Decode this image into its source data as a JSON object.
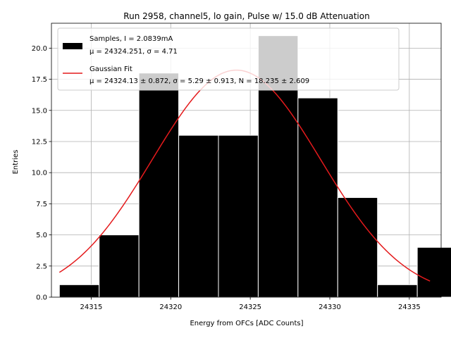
{
  "chart_data": {
    "type": "bar",
    "title": "Run 2958, channel5, lo gain, Pulse w/ 15.0 dB Attenuation",
    "xlabel": "Energy from OFCs [ADC Counts]",
    "ylabel": "Entries",
    "xlim": [
      24312.5,
      24337.0
    ],
    "ylim": [
      0,
      22.0
    ],
    "grid": true,
    "legend_placement": "top-left",
    "x_ticks": [
      24315,
      24320,
      24325,
      24330,
      24335
    ],
    "x_tick_labels": [
      "24315",
      "24320",
      "24325",
      "24330",
      "24335"
    ],
    "y_ticks": [
      0,
      2.5,
      5,
      7.5,
      10,
      12.5,
      15,
      17.5,
      20
    ],
    "y_tick_labels": [
      "0.0",
      "2.5",
      "5.0",
      "7.5",
      "10.0",
      "12.5",
      "15.0",
      "17.5",
      "20.0"
    ],
    "histogram": {
      "name": "Samples, I = 2.0839mA",
      "stats": "μ = 24324.251, σ = 4.71",
      "color": "#000000",
      "bin_edges": [
        24313.0,
        24315.5,
        24318.0,
        24320.5,
        24323.0,
        24325.5,
        24328.0,
        24330.5,
        24333.0,
        24335.5
      ],
      "bin_width": 2.5,
      "counts": [
        1,
        5,
        18,
        13,
        13,
        21,
        16,
        8,
        1,
        4
      ]
    },
    "fit": {
      "name": "Gaussian Fit",
      "stats": "μ = 24324.13 ± 0.872, σ = 5.29 ± 0.913, N = 18.235 ± 2.609",
      "color": "#e41a1c",
      "mu": 24324.13,
      "sigma": 5.29,
      "N": 18.235,
      "x_range": [
        24313.0,
        24336.3
      ]
    }
  }
}
